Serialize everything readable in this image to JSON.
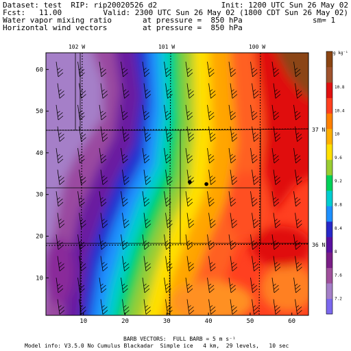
{
  "header": {
    "line1_left": "Dataset: test  RIP: rip20020526 d2",
    "line1_right": "Init: 1200 UTC Sun 26 May 02",
    "line2_left": "Fcst:   11.00",
    "line2_right": "Valid: 2300 UTC Sun 26 May 02 (1800 CDT Sun 26 May 02)",
    "line3_left": "Water vapor mixing ratio",
    "line3_mid": "at pressure =  850 hPa",
    "line3_right": "sm= 1",
    "line4_left": "Horizontal wind vectors",
    "line4_mid": "at pressure =  850 hPa"
  },
  "footer": {
    "barb_note": "BARB VECTORS:  FULL BARB = 5 m s⁻¹",
    "model_info": "Model info: V3.5.0 No Cumulus Blackadar  Simple ice   4 km,  29 levels,   10 sec"
  },
  "map": {
    "longitude_labels": [
      "102 W",
      "101 W",
      "100 W"
    ],
    "latitude_labels": [
      "37 N",
      "36 N"
    ],
    "x_ticks": [
      "10",
      "20",
      "30",
      "40",
      "50",
      "60"
    ],
    "y_ticks": [
      "10",
      "20",
      "30",
      "40",
      "50",
      "60"
    ],
    "grid_range": [
      1,
      64
    ],
    "station_dots": [
      [
        35.5,
        33
      ],
      [
        39.5,
        32.5
      ]
    ]
  },
  "colorbar": {
    "unit": "g kg⁻¹",
    "labels": [
      "10.8",
      "10.4",
      "10",
      "9.6",
      "9.2",
      "8.8",
      "8.4",
      "8",
      "7.6",
      "7.2"
    ],
    "colors": [
      "#7B68EE",
      "#A57FC8",
      "#A0509C",
      "#7A1E86",
      "#5A10A0",
      "#2828C8",
      "#1E90FF",
      "#00CED1",
      "#00D25A",
      "#9ACD32",
      "#FFE000",
      "#FFB000",
      "#FF8000",
      "#FF4020",
      "#E01010",
      "#A0522D",
      "#8B4513"
    ]
  }
}
